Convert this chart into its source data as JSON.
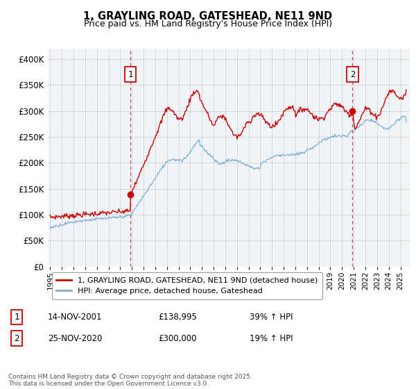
{
  "title1": "1, GRAYLING ROAD, GATESHEAD, NE11 9ND",
  "title2": "Price paid vs. HM Land Registry's House Price Index (HPI)",
  "ylim": [
    0,
    420000
  ],
  "yticks": [
    0,
    50000,
    100000,
    150000,
    200000,
    250000,
    300000,
    350000,
    400000
  ],
  "sale1_price": 138995,
  "sale1_year": 2001.88,
  "sale2_price": 300000,
  "sale2_year": 2020.9,
  "line1_color": "#cc0000",
  "line2_color": "#7aafd4",
  "vline_color": "#cc0000",
  "legend1": "1, GRAYLING ROAD, GATESHEAD, NE11 9ND (detached house)",
  "legend2": "HPI: Average price, detached house, Gateshead",
  "table_row1": [
    "1",
    "14-NOV-2001",
    "£138,995",
    "39% ↑ HPI"
  ],
  "table_row2": [
    "2",
    "25-NOV-2020",
    "£300,000",
    "19% ↑ HPI"
  ],
  "footnote": "Contains HM Land Registry data © Crown copyright and database right 2025.\nThis data is licensed under the Open Government Licence v3.0.",
  "grid_color": "#cccccc",
  "xlim_left": 1994.8,
  "xlim_right": 2025.8
}
